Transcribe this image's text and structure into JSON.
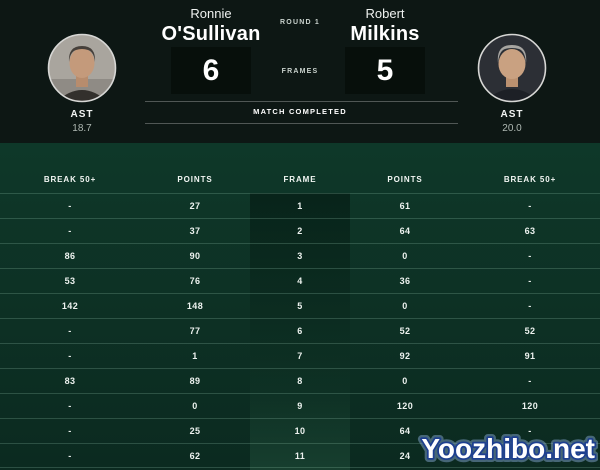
{
  "colors": {
    "page_bg": "#0d1714",
    "board_green": "#0e3829",
    "score_box_bg": "#070f0b",
    "separator": "rgba(163,216,191,0.22)",
    "watermark_stroke": "#1d3f8f"
  },
  "header": {
    "round": "ROUND 1",
    "frames_label": "FRAMES",
    "status": "MATCH COMPLETED",
    "left": {
      "first_name": "Ronnie",
      "last_name": "O'Sullivan",
      "frames_won": "6",
      "stat_label": "AST",
      "stat_value": "18.7"
    },
    "right": {
      "first_name": "Robert",
      "last_name": "Milkins",
      "frames_won": "5",
      "stat_label": "AST",
      "stat_value": "20.0"
    }
  },
  "table": {
    "columns": [
      "BREAK 50+",
      "POINTS",
      "FRAME",
      "POINTS",
      "BREAK 50+"
    ],
    "rows": [
      [
        "-",
        "27",
        "1",
        "61",
        "-"
      ],
      [
        "-",
        "37",
        "2",
        "64",
        "63"
      ],
      [
        "86",
        "90",
        "3",
        "0",
        "-"
      ],
      [
        "53",
        "76",
        "4",
        "36",
        "-"
      ],
      [
        "142",
        "148",
        "5",
        "0",
        "-"
      ],
      [
        "-",
        "77",
        "6",
        "52",
        "52"
      ],
      [
        "-",
        "1",
        "7",
        "92",
        "91"
      ],
      [
        "83",
        "89",
        "8",
        "0",
        "-"
      ],
      [
        "-",
        "0",
        "9",
        "120",
        "120"
      ],
      [
        "-",
        "25",
        "10",
        "64",
        "-"
      ],
      [
        "-",
        "62",
        "11",
        "24",
        "-"
      ]
    ]
  },
  "watermark": "Yoozhibo.net"
}
